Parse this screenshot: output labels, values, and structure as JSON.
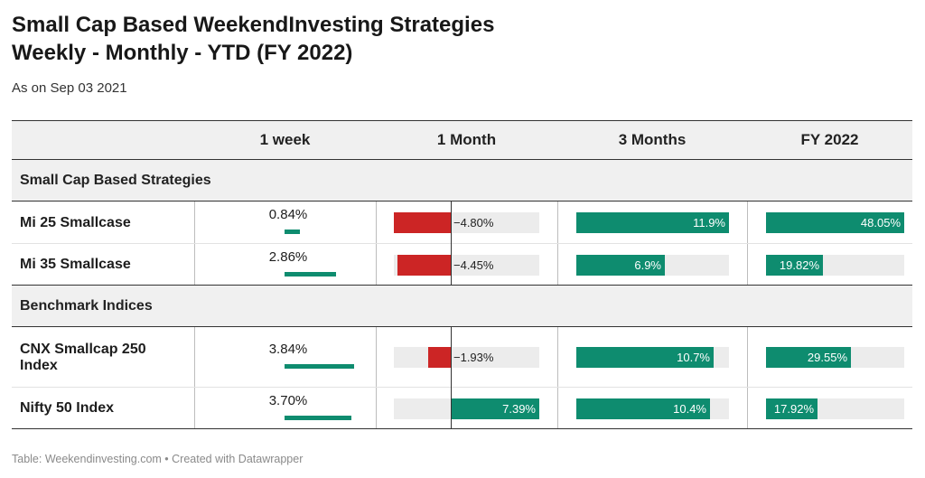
{
  "title_line1": "Small Cap Based WeekendInvesting Strategies",
  "title_line2": "Weekly - Monthly - YTD (FY 2022)",
  "subtitle": "As on Sep 03 2021",
  "footer": "Table: Weekendinvesting.com • Created with Datawrapper",
  "colors": {
    "positive": "#0e8c6f",
    "negative": "#cc2525",
    "track": "#ececec",
    "header_bg": "#f0f0f0"
  },
  "chart_data": {
    "type": "table",
    "columns": [
      "1 week",
      "1 Month",
      "3 Months",
      "FY 2022"
    ],
    "groups": [
      {
        "name": "Small Cap Based Strategies",
        "rows": [
          {
            "name": "Mi 25 Smallcase",
            "week": 0.84,
            "week_label": "0.84%",
            "month": -4.8,
            "month_label": "−4.80%",
            "m3": 11.9,
            "m3_label": "11.9%",
            "fy": 48.05,
            "fy_label": "48.05%"
          },
          {
            "name": "Mi 35 Smallcase",
            "week": 2.86,
            "week_label": "2.86%",
            "month": -4.45,
            "month_label": "−4.45%",
            "m3": 6.9,
            "m3_label": "6.9%",
            "fy": 19.82,
            "fy_label": "19.82%"
          }
        ]
      },
      {
        "name": "Benchmark Indices",
        "rows": [
          {
            "name": "CNX Smallcap 250 Index",
            "week": 3.84,
            "week_label": "3.84%",
            "month": -1.93,
            "month_label": "−1.93%",
            "m3": 10.7,
            "m3_label": "10.7%",
            "fy": 29.55,
            "fy_label": "29.55%"
          },
          {
            "name": "Nifty 50 Index",
            "week": 3.7,
            "week_label": "3.70%",
            "month": 7.39,
            "month_label": "7.39%",
            "m3": 10.4,
            "m3_label": "10.4%",
            "fy": 17.92,
            "fy_label": "17.92%"
          }
        ]
      }
    ],
    "scales": {
      "week_max": 3.84,
      "month_range": [
        -4.8,
        7.39
      ],
      "m3_max": 11.9,
      "fy_max": 48.05
    }
  }
}
